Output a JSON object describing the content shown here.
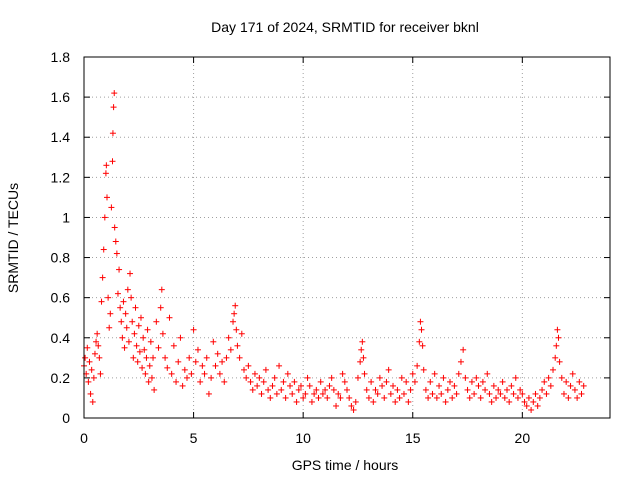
{
  "chart_data": {
    "type": "scatter",
    "title": "Day 171 of 2024, SRMTID for receiver bknl",
    "xlabel": "GPS time / hours",
    "ylabel": "SRMTID / TECUs",
    "xlim": [
      0,
      24
    ],
    "ylim": [
      0,
      1.8
    ],
    "x_ticks": [
      0,
      5,
      10,
      15,
      20
    ],
    "x_tick_labels": [
      "0",
      "5",
      "10",
      "15",
      "20"
    ],
    "y_ticks": [
      0,
      0.2,
      0.4,
      0.6,
      0.8,
      1.0,
      1.2,
      1.4,
      1.6,
      1.8
    ],
    "y_tick_labels": [
      "0",
      "0.2",
      "0.4",
      "0.6",
      "0.8",
      "1",
      "1.2",
      "1.4",
      "1.6",
      "1.8"
    ],
    "grid": true,
    "marker": "plus",
    "color": "#ff0000",
    "series": [
      {
        "name": "SRMTID",
        "points": [
          [
            0.0,
            0.26
          ],
          [
            0.05,
            0.3
          ],
          [
            0.1,
            0.22
          ],
          [
            0.15,
            0.35
          ],
          [
            0.2,
            0.18
          ],
          [
            0.25,
            0.28
          ],
          [
            0.3,
            0.12
          ],
          [
            0.35,
            0.24
          ],
          [
            0.4,
            0.08
          ],
          [
            0.45,
            0.2
          ],
          [
            0.5,
            0.32
          ],
          [
            0.55,
            0.38
          ],
          [
            0.6,
            0.42
          ],
          [
            0.65,
            0.36
          ],
          [
            0.7,
            0.3
          ],
          [
            0.75,
            0.22
          ],
          [
            0.8,
            0.58
          ],
          [
            0.85,
            0.7
          ],
          [
            0.9,
            0.84
          ],
          [
            0.95,
            1.0
          ],
          [
            1.0,
            1.22
          ],
          [
            1.02,
            1.26
          ],
          [
            1.05,
            1.1
          ],
          [
            1.1,
            0.6
          ],
          [
            1.15,
            0.45
          ],
          [
            1.2,
            0.52
          ],
          [
            1.25,
            1.05
          ],
          [
            1.3,
            1.28
          ],
          [
            1.32,
            1.42
          ],
          [
            1.35,
            1.55
          ],
          [
            1.38,
            1.62
          ],
          [
            1.4,
            0.95
          ],
          [
            1.45,
            0.88
          ],
          [
            1.5,
            0.82
          ],
          [
            1.55,
            0.62
          ],
          [
            1.6,
            0.74
          ],
          [
            1.65,
            0.55
          ],
          [
            1.7,
            0.48
          ],
          [
            1.75,
            0.4
          ],
          [
            1.8,
            0.58
          ],
          [
            1.85,
            0.35
          ],
          [
            1.9,
            0.52
          ],
          [
            1.95,
            0.45
          ],
          [
            2.0,
            0.64
          ],
          [
            2.05,
            0.38
          ],
          [
            2.1,
            0.72
          ],
          [
            2.15,
            0.6
          ],
          [
            2.2,
            0.48
          ],
          [
            2.25,
            0.3
          ],
          [
            2.3,
            0.42
          ],
          [
            2.35,
            0.55
          ],
          [
            2.4,
            0.36
          ],
          [
            2.45,
            0.28
          ],
          [
            2.5,
            0.46
          ],
          [
            2.55,
            0.33
          ],
          [
            2.6,
            0.5
          ],
          [
            2.65,
            0.25
          ],
          [
            2.7,
            0.4
          ],
          [
            2.75,
            0.34
          ],
          [
            2.8,
            0.22
          ],
          [
            2.85,
            0.3
          ],
          [
            2.9,
            0.44
          ],
          [
            2.95,
            0.18
          ],
          [
            3.0,
            0.26
          ],
          [
            3.05,
            0.38
          ],
          [
            3.1,
            0.2
          ],
          [
            3.15,
            0.3
          ],
          [
            3.2,
            0.14
          ],
          [
            3.3,
            0.48
          ],
          [
            3.4,
            0.35
          ],
          [
            3.5,
            0.55
          ],
          [
            3.55,
            0.64
          ],
          [
            3.6,
            0.42
          ],
          [
            3.7,
            0.3
          ],
          [
            3.8,
            0.25
          ],
          [
            3.9,
            0.5
          ],
          [
            4.0,
            0.22
          ],
          [
            4.1,
            0.36
          ],
          [
            4.2,
            0.18
          ],
          [
            4.3,
            0.28
          ],
          [
            4.4,
            0.4
          ],
          [
            4.5,
            0.16
          ],
          [
            4.6,
            0.24
          ],
          [
            4.7,
            0.2
          ],
          [
            4.8,
            0.3
          ],
          [
            4.9,
            0.22
          ],
          [
            5.0,
            0.44
          ],
          [
            5.1,
            0.28
          ],
          [
            5.2,
            0.34
          ],
          [
            5.3,
            0.18
          ],
          [
            5.4,
            0.26
          ],
          [
            5.5,
            0.22
          ],
          [
            5.6,
            0.3
          ],
          [
            5.7,
            0.12
          ],
          [
            5.8,
            0.2
          ],
          [
            5.9,
            0.38
          ],
          [
            6.0,
            0.26
          ],
          [
            6.1,
            0.32
          ],
          [
            6.2,
            0.22
          ],
          [
            6.3,
            0.28
          ],
          [
            6.4,
            0.18
          ],
          [
            6.5,
            0.3
          ],
          [
            6.6,
            0.4
          ],
          [
            6.7,
            0.34
          ],
          [
            6.8,
            0.48
          ],
          [
            6.85,
            0.52
          ],
          [
            6.9,
            0.56
          ],
          [
            6.95,
            0.44
          ],
          [
            7.0,
            0.36
          ],
          [
            7.1,
            0.3
          ],
          [
            7.2,
            0.42
          ],
          [
            7.3,
            0.24
          ],
          [
            7.4,
            0.2
          ],
          [
            7.5,
            0.26
          ],
          [
            7.6,
            0.18
          ],
          [
            7.7,
            0.14
          ],
          [
            7.8,
            0.22
          ],
          [
            7.9,
            0.16
          ],
          [
            8.0,
            0.2
          ],
          [
            8.1,
            0.12
          ],
          [
            8.2,
            0.18
          ],
          [
            8.3,
            0.24
          ],
          [
            8.4,
            0.14
          ],
          [
            8.5,
            0.1
          ],
          [
            8.6,
            0.16
          ],
          [
            8.7,
            0.2
          ],
          [
            8.8,
            0.12
          ],
          [
            8.9,
            0.26
          ],
          [
            9.0,
            0.14
          ],
          [
            9.1,
            0.18
          ],
          [
            9.2,
            0.1
          ],
          [
            9.3,
            0.22
          ],
          [
            9.4,
            0.16
          ],
          [
            9.5,
            0.12
          ],
          [
            9.6,
            0.18
          ],
          [
            9.7,
            0.08
          ],
          [
            9.8,
            0.14
          ],
          [
            9.9,
            0.16
          ],
          [
            10.0,
            0.1
          ],
          [
            10.1,
            0.12
          ],
          [
            10.2,
            0.2
          ],
          [
            10.3,
            0.16
          ],
          [
            10.4,
            0.08
          ],
          [
            10.5,
            0.12
          ],
          [
            10.6,
            0.14
          ],
          [
            10.7,
            0.1
          ],
          [
            10.8,
            0.18
          ],
          [
            10.9,
            0.12
          ],
          [
            11.0,
            0.14
          ],
          [
            11.1,
            0.1
          ],
          [
            11.2,
            0.16
          ],
          [
            11.3,
            0.2
          ],
          [
            11.4,
            0.14
          ],
          [
            11.5,
            0.06
          ],
          [
            11.6,
            0.12
          ],
          [
            11.7,
            0.1
          ],
          [
            11.8,
            0.22
          ],
          [
            11.9,
            0.18
          ],
          [
            12.0,
            0.14
          ],
          [
            12.1,
            0.1
          ],
          [
            12.2,
            0.06
          ],
          [
            12.3,
            0.04
          ],
          [
            12.4,
            0.08
          ],
          [
            12.5,
            0.2
          ],
          [
            12.6,
            0.28
          ],
          [
            12.65,
            0.34
          ],
          [
            12.7,
            0.38
          ],
          [
            12.75,
            0.3
          ],
          [
            12.8,
            0.22
          ],
          [
            12.9,
            0.14
          ],
          [
            13.0,
            0.1
          ],
          [
            13.1,
            0.18
          ],
          [
            13.2,
            0.08
          ],
          [
            13.3,
            0.14
          ],
          [
            13.4,
            0.12
          ],
          [
            13.5,
            0.2
          ],
          [
            13.6,
            0.16
          ],
          [
            13.7,
            0.1
          ],
          [
            13.8,
            0.18
          ],
          [
            13.9,
            0.24
          ],
          [
            14.0,
            0.12
          ],
          [
            14.1,
            0.16
          ],
          [
            14.2,
            0.08
          ],
          [
            14.3,
            0.14
          ],
          [
            14.4,
            0.1
          ],
          [
            14.5,
            0.2
          ],
          [
            14.6,
            0.12
          ],
          [
            14.7,
            0.18
          ],
          [
            14.8,
            0.08
          ],
          [
            14.9,
            0.14
          ],
          [
            15.0,
            0.22
          ],
          [
            15.1,
            0.18
          ],
          [
            15.2,
            0.26
          ],
          [
            15.3,
            0.38
          ],
          [
            15.35,
            0.48
          ],
          [
            15.4,
            0.44
          ],
          [
            15.45,
            0.36
          ],
          [
            15.5,
            0.24
          ],
          [
            15.6,
            0.14
          ],
          [
            15.7,
            0.1
          ],
          [
            15.8,
            0.18
          ],
          [
            15.9,
            0.12
          ],
          [
            16.0,
            0.22
          ],
          [
            16.1,
            0.1
          ],
          [
            16.2,
            0.16
          ],
          [
            16.3,
            0.12
          ],
          [
            16.4,
            0.2
          ],
          [
            16.5,
            0.08
          ],
          [
            16.6,
            0.14
          ],
          [
            16.7,
            0.18
          ],
          [
            16.8,
            0.1
          ],
          [
            16.9,
            0.16
          ],
          [
            17.0,
            0.12
          ],
          [
            17.1,
            0.22
          ],
          [
            17.2,
            0.28
          ],
          [
            17.3,
            0.34
          ],
          [
            17.4,
            0.2
          ],
          [
            17.5,
            0.14
          ],
          [
            17.6,
            0.1
          ],
          [
            17.7,
            0.18
          ],
          [
            17.8,
            0.12
          ],
          [
            17.9,
            0.2
          ],
          [
            18.0,
            0.16
          ],
          [
            18.1,
            0.1
          ],
          [
            18.2,
            0.18
          ],
          [
            18.3,
            0.14
          ],
          [
            18.4,
            0.22
          ],
          [
            18.5,
            0.12
          ],
          [
            18.6,
            0.08
          ],
          [
            18.7,
            0.16
          ],
          [
            18.8,
            0.1
          ],
          [
            18.9,
            0.14
          ],
          [
            19.0,
            0.12
          ],
          [
            19.1,
            0.18
          ],
          [
            19.2,
            0.1
          ],
          [
            19.3,
            0.14
          ],
          [
            19.4,
            0.08
          ],
          [
            19.5,
            0.16
          ],
          [
            19.6,
            0.12
          ],
          [
            19.7,
            0.2
          ],
          [
            19.8,
            0.1
          ],
          [
            19.9,
            0.14
          ],
          [
            20.0,
            0.12
          ],
          [
            20.1,
            0.08
          ],
          [
            20.2,
            0.06
          ],
          [
            20.3,
            0.1
          ],
          [
            20.4,
            0.04
          ],
          [
            20.5,
            0.08
          ],
          [
            20.6,
            0.12
          ],
          [
            20.7,
            0.06
          ],
          [
            20.8,
            0.1
          ],
          [
            20.9,
            0.14
          ],
          [
            21.0,
            0.18
          ],
          [
            21.1,
            0.12
          ],
          [
            21.2,
            0.2
          ],
          [
            21.3,
            0.16
          ],
          [
            21.4,
            0.24
          ],
          [
            21.5,
            0.3
          ],
          [
            21.55,
            0.36
          ],
          [
            21.6,
            0.44
          ],
          [
            21.65,
            0.4
          ],
          [
            21.7,
            0.28
          ],
          [
            21.8,
            0.2
          ],
          [
            21.9,
            0.12
          ],
          [
            22.0,
            0.18
          ],
          [
            22.1,
            0.1
          ],
          [
            22.2,
            0.16
          ],
          [
            22.3,
            0.22
          ],
          [
            22.4,
            0.14
          ],
          [
            22.5,
            0.1
          ],
          [
            22.6,
            0.18
          ],
          [
            22.7,
            0.12
          ],
          [
            22.8,
            0.16
          ]
        ]
      }
    ]
  }
}
